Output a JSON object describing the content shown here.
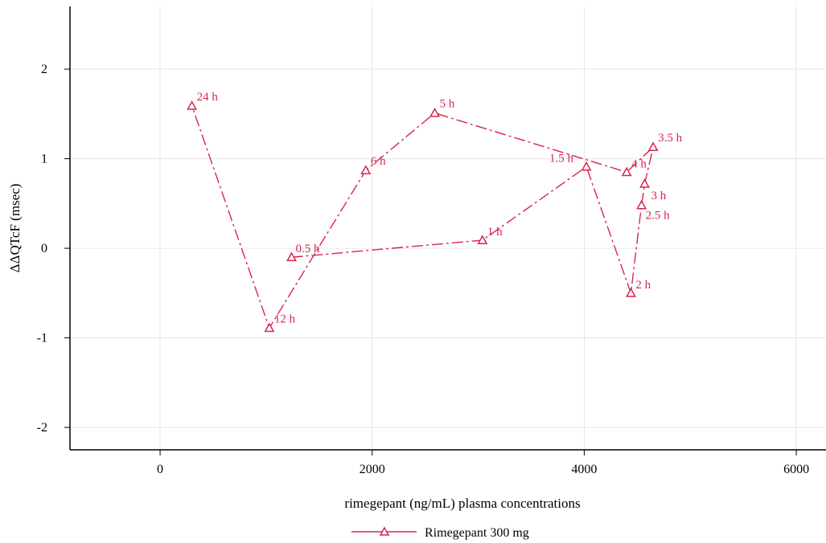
{
  "chart_data": {
    "type": "line",
    "title": "",
    "xlabel": "rimegepant (ng/mL) plasma concentrations",
    "ylabel": "ΔΔQTcF (msec)",
    "xlim": [
      -850,
      6280
    ],
    "ylim": [
      -2.25,
      2.7
    ],
    "xticks": [
      0,
      2000,
      4000,
      6000
    ],
    "yticks": [
      -2,
      -1,
      0,
      1,
      2
    ],
    "grid": true,
    "legend_position": "bottom",
    "series": [
      {
        "name": "Rimegepant 300 mg",
        "color": "#d6264f",
        "marker": "triangle-open",
        "line_style": "dash-dot",
        "points": [
          {
            "label": "0.5 h",
            "x": 1240,
            "y": -0.1
          },
          {
            "label": "1 h",
            "x": 3040,
            "y": 0.09
          },
          {
            "label": "1.5 h",
            "x": 4020,
            "y": 0.91
          },
          {
            "label": "2 h",
            "x": 4440,
            "y": -0.5
          },
          {
            "label": "2.5 h",
            "x": 4540,
            "y": 0.48
          },
          {
            "label": "3 h",
            "x": 4570,
            "y": 0.72
          },
          {
            "label": "3.5 h",
            "x": 4650,
            "y": 1.13
          },
          {
            "label": "4 h",
            "x": 4400,
            "y": 0.85
          },
          {
            "label": "5 h",
            "x": 2590,
            "y": 1.51
          },
          {
            "label": "6 h",
            "x": 1940,
            "y": 0.87
          },
          {
            "label": "12 h",
            "x": 1030,
            "y": -0.89
          },
          {
            "label": "24 h",
            "x": 300,
            "y": 1.59
          }
        ]
      }
    ]
  }
}
